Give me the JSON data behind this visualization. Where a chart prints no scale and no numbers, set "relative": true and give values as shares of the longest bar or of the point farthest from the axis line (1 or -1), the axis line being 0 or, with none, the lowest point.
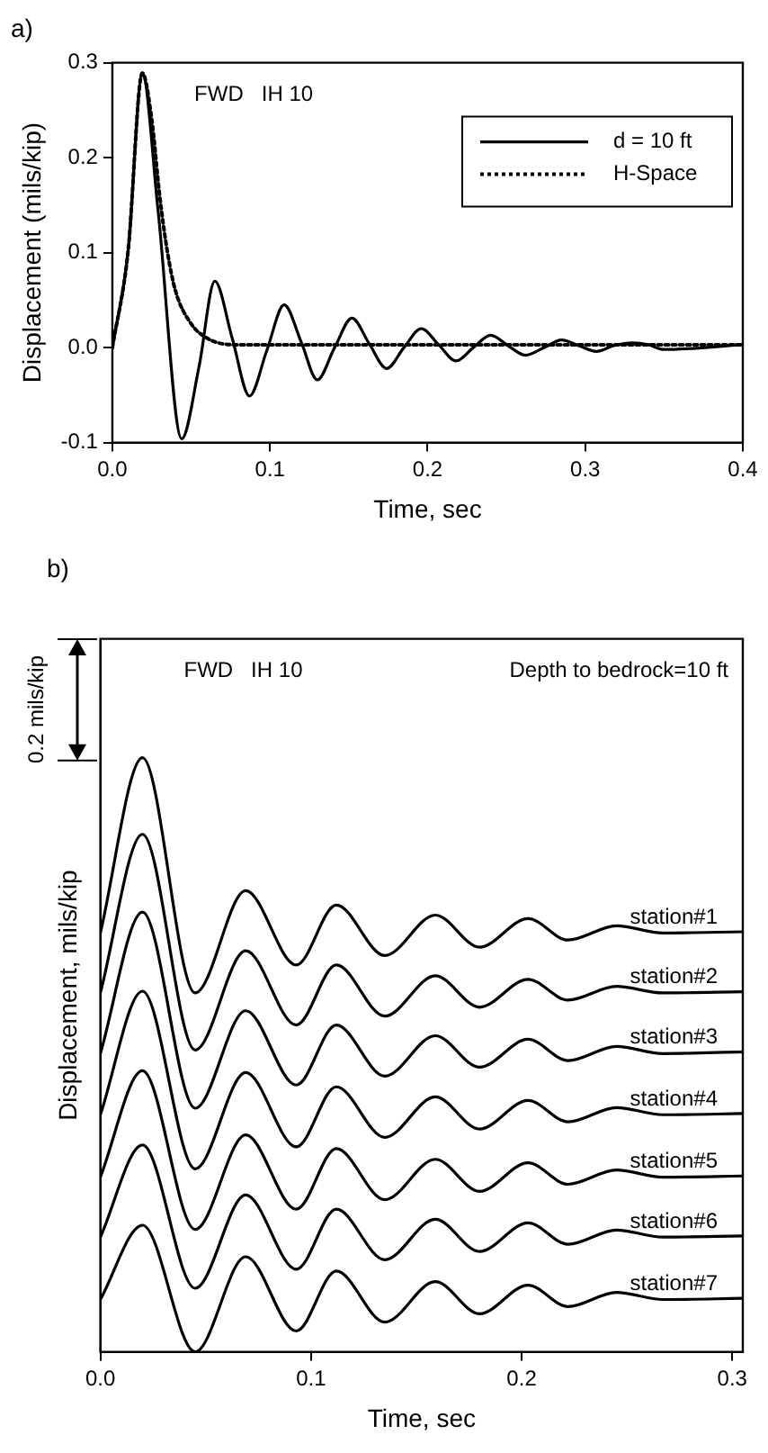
{
  "chart_data": [
    {
      "type": "line",
      "title": "a)",
      "xlabel": "Time, sec",
      "ylabel": "Displacement (mils/kip)",
      "annotations": [
        "FWD   IH 10"
      ],
      "xlim": [
        0,
        0.4
      ],
      "ylim": [
        -0.1,
        0.3
      ],
      "xticks": [
        {
          "value": 0,
          "label": "0.0"
        },
        0.1,
        0.2,
        0.3,
        0.4
      ],
      "yticks": [
        -0.1,
        {
          "value": 0,
          "label": "0.0"
        },
        0.1,
        0.2,
        0.3
      ],
      "legend": "top right",
      "grid": false,
      "marker": "none",
      "series": [
        {
          "name": "d = 10 ft",
          "color": "#000000",
          "line_style": "solid",
          "x": [
            0,
            0.01,
            0.019,
            0.029,
            0.044,
            0.055,
            0.065,
            0.076,
            0.087,
            0.098,
            0.109,
            0.12,
            0.13,
            0.141,
            0.152,
            0.163,
            0.174,
            0.185,
            0.196,
            0.207,
            0.218,
            0.229,
            0.24,
            0.251,
            0.262,
            0.274,
            0.285,
            0.296,
            0.307,
            0.318,
            0.33,
            0.34,
            0.35,
            0.4
          ],
          "values": [
            0,
            0.102,
            0.289,
            0.144,
            -0.096,
            -0.02,
            0.07,
            0.01,
            -0.051,
            -0.003,
            0.045,
            0.005,
            -0.034,
            0,
            0.031,
            0.004,
            -0.022,
            0,
            0.02,
            0.003,
            -0.014,
            0,
            0.013,
            0.002,
            -0.008,
            0,
            0.008,
            0.002,
            -0.004,
            0.002,
            0.005,
            0.003,
            -0.002,
            0.003
          ]
        },
        {
          "name": "H-Space",
          "color": "#000000",
          "line_style": "dotted",
          "x": [
            0,
            0.01,
            0.019,
            0.025,
            0.03,
            0.035,
            0.04,
            0.05,
            0.06,
            0.07,
            0.08,
            0.4
          ],
          "values": [
            0,
            0.102,
            0.289,
            0.24,
            0.16,
            0.1,
            0.06,
            0.025,
            0.01,
            0.004,
            0.003,
            0.003
          ]
        }
      ]
    },
    {
      "type": "line",
      "title": "b)",
      "xlabel": "Time, sec",
      "ylabel": "Displacement, mils/kip",
      "annotations": [
        "FWD   IH 10",
        "Depth to bedrock=10 ft",
        "0.2 mils/kip"
      ],
      "relative": true,
      "xlim": [
        0,
        0.305
      ],
      "xticks": [
        {
          "value": 0,
          "label": "0.0"
        },
        0.1,
        0.2,
        0.3
      ],
      "legend": false,
      "grid": false,
      "marker": "none",
      "line_style": "solid",
      "x": [
        0,
        0.02,
        0.045,
        0.069,
        0.093,
        0.112,
        0.135,
        0.159,
        0.18,
        0.203,
        0.222,
        0.245,
        0.267,
        0.305
      ],
      "series": [
        {
          "name": "station#1",
          "color": "#000000",
          "values": [
            0.705,
            1.0,
            0.604,
            0.776,
            0.651,
            0.752,
            0.667,
            0.735,
            0.681,
            0.729,
            0.693,
            0.717,
            0.705,
            0.707
          ]
        },
        {
          "name": "station#2",
          "color": "#000000",
          "values": [
            0.604,
            0.871,
            0.508,
            0.675,
            0.55,
            0.651,
            0.565,
            0.633,
            0.58,
            0.627,
            0.592,
            0.615,
            0.604,
            0.606
          ]
        },
        {
          "name": "station#3",
          "color": "#000000",
          "values": [
            0.502,
            0.74,
            0.41,
            0.574,
            0.449,
            0.55,
            0.464,
            0.532,
            0.479,
            0.526,
            0.49,
            0.514,
            0.502,
            0.505
          ]
        },
        {
          "name": "station#4",
          "color": "#000000",
          "values": [
            0.399,
            0.607,
            0.308,
            0.47,
            0.345,
            0.446,
            0.361,
            0.429,
            0.375,
            0.423,
            0.387,
            0.411,
            0.399,
            0.401
          ]
        },
        {
          "name": "station#5",
          "color": "#000000",
          "values": [
            0.294,
            0.473,
            0.206,
            0.365,
            0.24,
            0.342,
            0.256,
            0.324,
            0.27,
            0.318,
            0.282,
            0.306,
            0.294,
            0.296
          ]
        },
        {
          "name": "station#6",
          "color": "#000000",
          "values": [
            0.193,
            0.348,
            0.107,
            0.264,
            0.139,
            0.24,
            0.155,
            0.223,
            0.169,
            0.217,
            0.181,
            0.205,
            0.193,
            0.195
          ]
        },
        {
          "name": "station#7",
          "color": "#000000",
          "values": [
            0.088,
            0.213,
            0.0,
            0.16,
            0.035,
            0.136,
            0.05,
            0.118,
            0.064,
            0.112,
            0.076,
            0.1,
            0.088,
            0.09
          ]
        }
      ]
    }
  ]
}
